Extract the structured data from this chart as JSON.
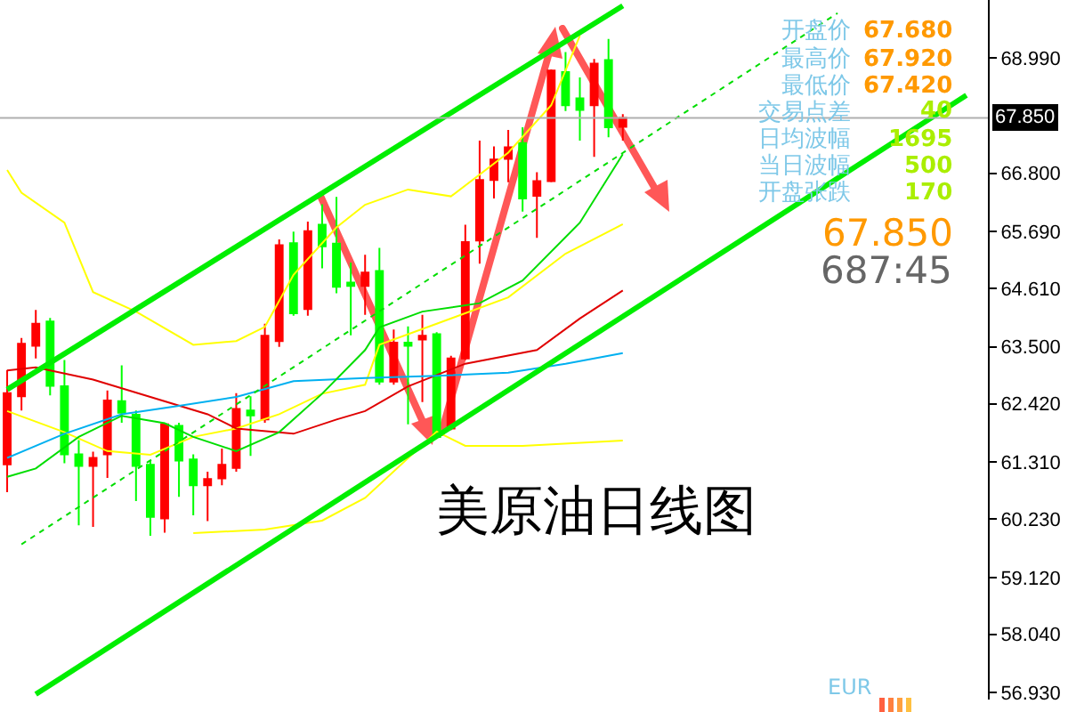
{
  "chart_data": {
    "type": "candlestick",
    "title": "美原油日线图",
    "categories": [
      null,
      null,
      null,
      null,
      null,
      null,
      null,
      null,
      null,
      null,
      null,
      null,
      null,
      null,
      null,
      null,
      null,
      null,
      null,
      null,
      null,
      null,
      null,
      null,
      null,
      null,
      null,
      null,
      null,
      null,
      null,
      null,
      null,
      null,
      null,
      null,
      null,
      null,
      null,
      null,
      null,
      null,
      null,
      null,
      null,
      null,
      null,
      null,
      null,
      null,
      null,
      null,
      null,
      null,
      null,
      null,
      null,
      null,
      null,
      null,
      null,
      null,
      null,
      null,
      null,
      null,
      null,
      null,
      null
    ],
    "ohlc": [
      [
        61.27,
        63.06,
        60.74,
        62.62
      ],
      [
        62.56,
        63.67,
        62.29,
        63.56
      ],
      [
        63.52,
        64.2,
        63.28,
        63.94
      ],
      [
        63.98,
        64.05,
        62.58,
        62.76
      ],
      [
        62.75,
        63.25,
        61.29,
        61.46
      ],
      [
        61.46,
        61.73,
        60.11,
        61.24
      ],
      [
        61.24,
        61.51,
        60.08,
        61.39
      ],
      [
        61.46,
        62.67,
        61.01,
        62.48
      ],
      [
        62.47,
        63.15,
        62.06,
        62.25
      ],
      [
        62.21,
        62.29,
        60.57,
        61.24
      ],
      [
        61.26,
        61.35,
        59.91,
        60.27
      ],
      [
        60.24,
        62.06,
        59.97,
        62.03
      ],
      [
        62.0,
        62.06,
        60.65,
        61.34
      ],
      [
        61.36,
        61.46,
        60.3,
        60.87
      ],
      [
        60.87,
        61.13,
        60.19,
        60.99
      ],
      [
        61.0,
        61.57,
        60.87,
        61.26
      ],
      [
        61.2,
        62.62,
        61.13,
        62.32
      ],
      [
        62.29,
        62.56,
        61.43,
        62.2
      ],
      [
        62.12,
        63.94,
        62.06,
        63.71
      ],
      [
        63.61,
        65.54,
        63.5,
        65.43
      ],
      [
        65.47,
        65.69,
        64.09,
        64.14
      ],
      [
        64.22,
        65.88,
        64.09,
        65.7
      ],
      [
        65.82,
        66.21,
        64.99,
        65.41
      ],
      [
        65.46,
        66.35,
        64.52,
        64.64
      ],
      [
        64.72,
        65.1,
        63.72,
        64.66
      ],
      [
        64.66,
        65.25,
        64.11,
        64.91
      ],
      [
        64.94,
        65.38,
        62.78,
        62.84
      ],
      [
        62.84,
        63.83,
        62.78,
        63.58
      ],
      [
        63.58,
        63.89,
        62.03,
        63.52
      ],
      [
        63.64,
        64.11,
        62.45,
        63.71
      ],
      [
        63.74,
        63.78,
        61.77,
        61.79
      ],
      [
        61.95,
        63.33,
        61.92,
        63.28
      ],
      [
        63.28,
        65.82,
        63.25,
        65.49
      ],
      [
        65.52,
        67.42,
        65.08,
        66.67
      ],
      [
        66.67,
        67.31,
        66.32,
        67.06
      ],
      [
        67.07,
        67.62,
        66.63,
        67.29
      ],
      [
        67.37,
        67.67,
        66.07,
        66.32
      ],
      [
        66.37,
        66.82,
        65.57,
        66.65
      ],
      [
        66.65,
        68.77,
        66.63,
        68.75
      ],
      [
        68.72,
        69.1,
        67.98,
        68.09
      ],
      [
        68.22,
        68.62,
        67.42,
        68.0
      ],
      [
        68.09,
        68.97,
        67.11,
        68.88
      ],
      [
        68.95,
        69.35,
        67.48,
        67.67
      ],
      [
        67.68,
        67.92,
        67.42,
        67.85
      ],
      null,
      null,
      null,
      null,
      null,
      null,
      null,
      null,
      null,
      null,
      null,
      null,
      null,
      null,
      null,
      null,
      null,
      null,
      null,
      null,
      null,
      null,
      null,
      null,
      null
    ],
    "colors": [
      "#ff0000",
      "#ff0000",
      "#ff0000",
      "#00ff00",
      "#00ff00",
      "#00ff00",
      "#ff0000",
      "#ff0000",
      "#00ff00",
      "#00ff00",
      "#00ff00",
      "#ff0000",
      "#00ff00",
      "#00ff00",
      "#ff0000",
      "#ff0000",
      "#ff0000",
      "#00ff00",
      "#ff0000",
      "#ff0000",
      "#00ff00",
      "#ff0000",
      "#00ff00",
      "#00ff00",
      "#00ff00",
      "#ff0000",
      "#00ff00",
      "#ff0000",
      "#00ff00",
      "#ff0000",
      "#00ff00",
      "#ff0000",
      "#ff0000",
      "#ff0000",
      "#ff0000",
      "#ff0000",
      "#00ff00",
      "#ff0000",
      "#ff0000",
      "#00ff00",
      "#00ff00",
      "#ff0000",
      "#00ff00",
      "#ff0000",
      null,
      null,
      null,
      null,
      null,
      null,
      null,
      null,
      null,
      null,
      null,
      null,
      null,
      null,
      null,
      null,
      null,
      null,
      null,
      null,
      null,
      null,
      null,
      null,
      null
    ],
    "series": [
      {
        "type": "line",
        "color": "#ffff00",
        "values": [
          66.86,
          66.43,
          null,
          null,
          65.86,
          null,
          64.54,
          null,
          null,
          64.17,
          null,
          null,
          null,
          63.54,
          null,
          null,
          63.61,
          null,
          63.88,
          null,
          64.87,
          null,
          null,
          65.77,
          null,
          66.2,
          null,
          null,
          66.49,
          null,
          null,
          66.36,
          null,
          null,
          null,
          67.19,
          null,
          null,
          68.09,
          null,
          69.41,
          null,
          null,
          null,
          null,
          null,
          null,
          null,
          null,
          null,
          null,
          null,
          null,
          null,
          null,
          null,
          null,
          null,
          null,
          null,
          null,
          null,
          null,
          null,
          null,
          null,
          null,
          null,
          null
        ]
      },
      {
        "type": "line",
        "color": "#ffff00",
        "values": [
          62.28,
          null,
          null,
          null,
          61.88,
          null,
          null,
          61.52,
          null,
          null,
          61.45,
          null,
          null,
          61.79,
          null,
          null,
          61.95,
          null,
          null,
          62.22,
          null,
          null,
          62.61,
          null,
          null,
          62.78,
          63.54,
          null,
          null,
          null,
          63.94,
          null,
          null,
          null,
          null,
          64.44,
          null,
          null,
          null,
          65.27,
          null,
          null,
          null,
          65.83,
          null,
          null,
          null,
          null,
          null,
          null,
          null,
          null,
          null,
          null,
          null,
          null,
          null,
          null,
          null,
          null,
          null,
          null,
          null,
          null,
          null,
          null,
          null,
          null,
          null
        ]
      },
      {
        "type": "line",
        "color": "#ffff00",
        "values": [
          null,
          null,
          null,
          null,
          null,
          null,
          null,
          null,
          null,
          null,
          null,
          null,
          null,
          59.96,
          null,
          null,
          null,
          null,
          60.03,
          null,
          null,
          null,
          60.2,
          null,
          null,
          60.63,
          null,
          null,
          null,
          null,
          61.89,
          null,
          61.62,
          null,
          null,
          null,
          61.62,
          null,
          null,
          null,
          null,
          null,
          null,
          61.72,
          null,
          null,
          null,
          null,
          null,
          null,
          null,
          null,
          null,
          null,
          null,
          null,
          null,
          null,
          null,
          null,
          null,
          null,
          null,
          null,
          null,
          null,
          null,
          null,
          null
        ]
      },
      {
        "type": "line",
        "color": "#e00000",
        "values": [
          63.05,
          null,
          63.11,
          null,
          null,
          null,
          62.88,
          null,
          null,
          null,
          62.55,
          null,
          null,
          null,
          62.22,
          null,
          61.95,
          null,
          null,
          null,
          61.85,
          null,
          null,
          62.12,
          null,
          62.28,
          null,
          null,
          62.75,
          null,
          null,
          null,
          63.18,
          null,
          null,
          null,
          null,
          63.44,
          null,
          null,
          64.04,
          null,
          null,
          64.57,
          null,
          null,
          null,
          null,
          null,
          null,
          null,
          null,
          null,
          null,
          null,
          null,
          null,
          null,
          null,
          null,
          null,
          null,
          null,
          null,
          null,
          null,
          null,
          null,
          null
        ]
      },
      {
        "type": "line",
        "color": "#00b0f0",
        "values": [
          61.39,
          null,
          null,
          null,
          61.85,
          null,
          null,
          null,
          62.22,
          null,
          null,
          null,
          62.38,
          null,
          null,
          null,
          62.55,
          null,
          null,
          null,
          62.85,
          null,
          null,
          null,
          null,
          62.91,
          null,
          null,
          null,
          null,
          62.95,
          null,
          null,
          null,
          null,
          63.01,
          null,
          null,
          null,
          63.18,
          null,
          null,
          null,
          63.38,
          null,
          null,
          null,
          null,
          null,
          null,
          null,
          null,
          null,
          null,
          null,
          null,
          null,
          null,
          null,
          null,
          null,
          null,
          null,
          null,
          null,
          null,
          null,
          null,
          null
        ]
      },
      {
        "type": "line",
        "color": "#00dd00",
        "values": [
          61.03,
          null,
          61.19,
          null,
          null,
          61.79,
          null,
          null,
          62.19,
          null,
          null,
          62.05,
          null,
          61.79,
          null,
          null,
          61.52,
          null,
          null,
          61.88,
          null,
          null,
          62.61,
          null,
          null,
          63.44,
          63.87,
          null,
          null,
          64.17,
          null,
          null,
          null,
          64.33,
          null,
          null,
          64.76,
          null,
          null,
          null,
          65.86,
          null,
          null,
          67.16,
          null,
          null,
          null,
          null,
          null,
          null,
          null,
          null,
          null,
          null,
          null,
          null,
          null,
          null,
          null,
          null,
          null,
          null,
          null,
          null,
          null,
          null,
          null,
          null,
          null
        ]
      },
      {
        "type": "line",
        "color": "#00ee00",
        "values": [
          62.69,
          null,
          null,
          null,
          null,
          null,
          null,
          null,
          null,
          null,
          null,
          null,
          null,
          null,
          null,
          null,
          null,
          null,
          null,
          null,
          null,
          null,
          null,
          null,
          null,
          null,
          null,
          null,
          null,
          null,
          null,
          null,
          null,
          null,
          null,
          null,
          null,
          null,
          null,
          null,
          null,
          null,
          null,
          69.98,
          null,
          null,
          null,
          null,
          null,
          null,
          null,
          null,
          null,
          null,
          null,
          null,
          null,
          null,
          null,
          null,
          null,
          null,
          null,
          null,
          null,
          null,
          null,
          null,
          null
        ]
      },
      {
        "type": "line",
        "color": "#00ee00",
        "values": [
          null,
          null,
          56.9,
          null,
          null,
          null,
          null,
          null,
          null,
          null,
          null,
          null,
          null,
          null,
          null,
          null,
          null,
          null,
          null,
          null,
          null,
          null,
          null,
          null,
          null,
          null,
          null,
          null,
          null,
          null,
          null,
          null,
          null,
          null,
          null,
          null,
          null,
          null,
          null,
          null,
          null,
          null,
          null,
          null,
          null,
          null,
          null,
          null,
          null,
          null,
          null,
          null,
          null,
          null,
          null,
          null,
          null,
          null,
          null,
          null,
          null,
          null,
          null,
          null,
          null,
          null,
          null,
          68.28,
          null
        ]
      },
      {
        "type": "line",
        "color": "#00dd00",
        "line_style": "dotted",
        "values": [
          null,
          59.75,
          null,
          null,
          null,
          null,
          null,
          null,
          null,
          null,
          null,
          null,
          null,
          null,
          null,
          null,
          null,
          null,
          null,
          null,
          null,
          null,
          null,
          null,
          null,
          null,
          null,
          null,
          null,
          null,
          null,
          null,
          null,
          null,
          null,
          null,
          null,
          null,
          null,
          null,
          null,
          null,
          null,
          null,
          null,
          null,
          null,
          null,
          null,
          null,
          null,
          null,
          null,
          null,
          null,
          null,
          null,
          null,
          69.84,
          null,
          null,
          null,
          null,
          null,
          null,
          null,
          null,
          null,
          null
        ]
      }
    ],
    "ylim": [
      56.8,
      70.09
    ],
    "yticks": [
      {
        "value": 68.99,
        "label": "68.990"
      },
      {
        "value": 66.8,
        "label": "66.800"
      },
      {
        "value": 65.69,
        "label": "65.690"
      },
      {
        "value": 64.61,
        "label": "64.610"
      },
      {
        "value": 63.5,
        "label": "63.500"
      },
      {
        "value": 62.42,
        "label": "62.420"
      },
      {
        "value": 61.31,
        "label": "61.310"
      },
      {
        "value": 60.23,
        "label": "60.230"
      },
      {
        "value": 59.12,
        "label": "59.120"
      },
      {
        "value": 58.04,
        "label": "58.040"
      },
      {
        "value": 56.93,
        "label": "56.930"
      }
    ],
    "ref_lines": [
      {
        "axis": "y",
        "value": 67.85,
        "label": "67.850",
        "color": "#b0b0b0"
      }
    ],
    "tick_labels": "y",
    "grid": false,
    "annotations": [
      "开盘价",
      "67.680",
      "最高价",
      "67.920",
      "最低价",
      "67.420",
      "交易点差",
      "40",
      "日均波幅",
      "1695",
      "当日波幅",
      "500",
      "开盘张跌",
      "170",
      "67.850",
      "687:45",
      "EUR"
    ]
  }
}
